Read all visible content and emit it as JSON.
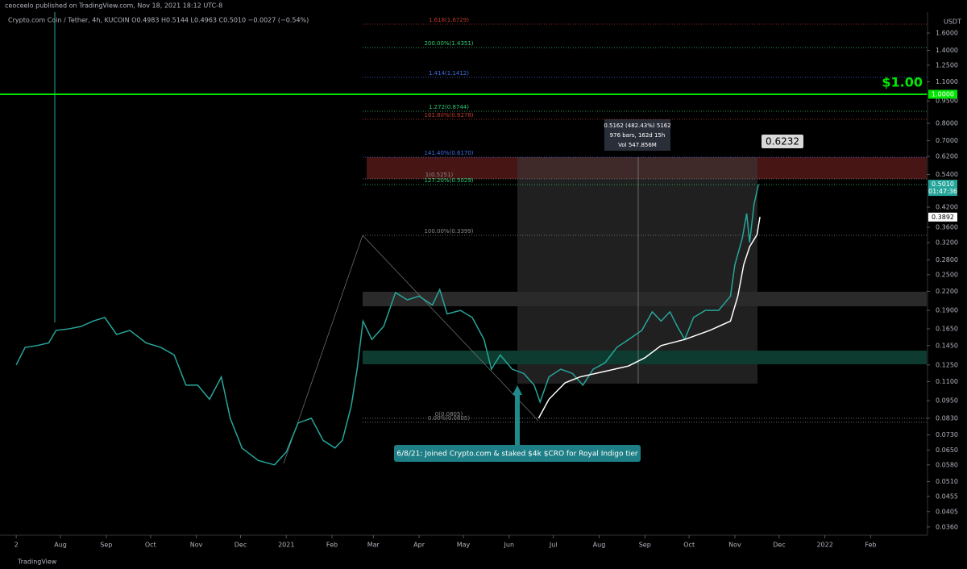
{
  "header": "ceoceelo published on TradingView.com, Nov 18, 2021 18:12 UTC-8",
  "footer": "TradingView",
  "chart_data": {
    "type": "line",
    "legend": "Crypto.com Coin / Tether, 4h, KUCOIN  O0.4983  H0.5144  L0.4963  C0.5010  −0.0027 (−0.54%)",
    "currency": "USDT",
    "log_scale": true,
    "xlim": [
      -10,
      618
    ],
    "ylim": [
      0.0338,
      1.88
    ],
    "xticks": [
      {
        "value": 1,
        "label": "2"
      },
      {
        "value": 31,
        "label": "Aug"
      },
      {
        "value": 62,
        "label": "Sep"
      },
      {
        "value": 92,
        "label": "Oct"
      },
      {
        "value": 123,
        "label": "Nov"
      },
      {
        "value": 153,
        "label": "Dec"
      },
      {
        "value": 184,
        "label": "2021"
      },
      {
        "value": 215,
        "label": "Feb"
      },
      {
        "value": 243,
        "label": "Mar"
      },
      {
        "value": 274,
        "label": "Apr"
      },
      {
        "value": 304,
        "label": "May"
      },
      {
        "value": 335,
        "label": "Jun"
      },
      {
        "value": 365,
        "label": "Jul"
      },
      {
        "value": 396,
        "label": "Aug"
      },
      {
        "value": 427,
        "label": "Sep"
      },
      {
        "value": 457,
        "label": "Oct"
      },
      {
        "value": 488,
        "label": "Nov"
      },
      {
        "value": 518,
        "label": "Dec"
      },
      {
        "value": 549,
        "label": "2022"
      },
      {
        "value": 580,
        "label": "Feb"
      }
    ],
    "yticks": [
      {
        "value": 1.6,
        "label": "1.6000"
      },
      {
        "value": 1.4,
        "label": "1.4000"
      },
      {
        "value": 1.25,
        "label": "1.2500"
      },
      {
        "value": 1.1,
        "label": "1.1000"
      },
      {
        "value": 0.95,
        "label": "0.9500"
      },
      {
        "value": 0.8,
        "label": "0.8000"
      },
      {
        "value": 0.7,
        "label": "0.7000"
      },
      {
        "value": 0.62,
        "label": "0.6200"
      },
      {
        "value": 0.54,
        "label": "0.5400"
      },
      {
        "value": 0.42,
        "label": "0.4200"
      },
      {
        "value": 0.36,
        "label": "0.3600"
      },
      {
        "value": 0.32,
        "label": "0.3200"
      },
      {
        "value": 0.28,
        "label": "0.2800"
      },
      {
        "value": 0.25,
        "label": "0.2500"
      },
      {
        "value": 0.22,
        "label": "0.2200"
      },
      {
        "value": 0.19,
        "label": "0.1900"
      },
      {
        "value": 0.165,
        "label": "0.1650"
      },
      {
        "value": 0.145,
        "label": "0.1450"
      },
      {
        "value": 0.125,
        "label": "0.1250"
      },
      {
        "value": 0.11,
        "label": "0.1100"
      },
      {
        "value": 0.095,
        "label": "0.0950"
      },
      {
        "value": 0.083,
        "label": "0.0830"
      },
      {
        "value": 0.073,
        "label": "0.0730"
      },
      {
        "value": 0.065,
        "label": "0.0650"
      },
      {
        "value": 0.058,
        "label": "0.0580"
      },
      {
        "value": 0.051,
        "label": "0.0510"
      },
      {
        "value": 0.0455,
        "label": "0.0455"
      },
      {
        "value": 0.0405,
        "label": "0.0405"
      },
      {
        "value": 0.036,
        "label": "0.0360"
      }
    ],
    "series": [
      {
        "name": "Price",
        "color": "#26a69a",
        "x": [
          1,
          7,
          15,
          23,
          28,
          37,
          45,
          53,
          61,
          69,
          78,
          89,
          99,
          108,
          116,
          124,
          132,
          140,
          146,
          154,
          165,
          176,
          184,
          192,
          201,
          209,
          217,
          222,
          228,
          232,
          236,
          242,
          250,
          258,
          266,
          274,
          283,
          288,
          293,
          302,
          310,
          318,
          323,
          329,
          337,
          345,
          352,
          356,
          362,
          370,
          378,
          385,
          392,
          400,
          408,
          416,
          425,
          432,
          438,
          444,
          449,
          454,
          460,
          468,
          477,
          485,
          488,
          493,
          496,
          498,
          501,
          504
        ],
        "values": [
          0.125,
          0.143,
          0.145,
          0.148,
          0.163,
          0.165,
          0.168,
          0.175,
          0.18,
          0.158,
          0.163,
          0.148,
          0.143,
          0.135,
          0.107,
          0.107,
          0.096,
          0.114,
          0.083,
          0.066,
          0.06,
          0.058,
          0.064,
          0.08,
          0.083,
          0.07,
          0.066,
          0.07,
          0.091,
          0.121,
          0.175,
          0.152,
          0.168,
          0.218,
          0.206,
          0.212,
          0.198,
          0.223,
          0.185,
          0.19,
          0.18,
          0.152,
          0.121,
          0.135,
          0.121,
          0.117,
          0.107,
          0.094,
          0.114,
          0.121,
          0.117,
          0.107,
          0.121,
          0.127,
          0.143,
          0.152,
          0.163,
          0.188,
          0.175,
          0.188,
          0.168,
          0.152,
          0.18,
          0.19,
          0.19,
          0.212,
          0.27,
          0.33,
          0.4,
          0.32,
          0.43,
          0.5
        ]
      },
      {
        "name": "VWAP",
        "color": "#ffffff",
        "x": [
          355,
          362,
          373,
          383,
          400,
          416,
          427,
          438,
          454,
          471,
          485,
          490,
          494,
          498,
          503,
          505
        ],
        "values": [
          0.083,
          0.096,
          0.109,
          0.114,
          0.119,
          0.124,
          0.132,
          0.145,
          0.152,
          0.163,
          0.175,
          0.212,
          0.27,
          0.31,
          0.34,
          0.39
        ]
      }
    ],
    "hline": {
      "value": 1.0,
      "label": "$1.00",
      "color": "#00e600"
    },
    "price_tags": [
      {
        "value": 1.0,
        "label": "1.0000",
        "color": "#00e600"
      },
      {
        "value": 0.501,
        "label": "0.5010",
        "sublabel": "01:47:36",
        "color": "#26a69a"
      },
      {
        "value": 0.3892,
        "label": "0.3892",
        "color": "#ffffff"
      }
    ],
    "fib_labels": [
      "1.618(1.6729)",
      "200.00%(1.4351)",
      "1.414(1.1412)",
      "1.272(0.8744)",
      "161.80%(0.6278)",
      "141.40%(0.6170)",
      "1(0.5251)",
      "127.20%(0.5029)",
      "100.00%(0.3399)",
      "0(0.0805)",
      "0.00%(0.0805)"
    ],
    "callout": "0.6232",
    "measure": [
      "0.5162 (482.43%) 5162",
      "976 bars, 162d 15h",
      "Vol 547.856M"
    ],
    "note": "6/8/21: Joined Crypto.com & staked $4k $CRO for Royal Indigo tier"
  }
}
